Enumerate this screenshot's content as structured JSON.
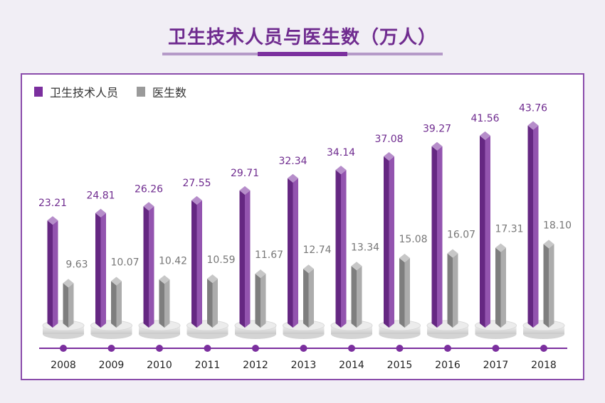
{
  "title": "卫生技术人员与医生数（万人）",
  "colors": {
    "series1": "#7b2f9e",
    "series2": "#9a9a9a",
    "label1": "#6f2b8f",
    "label2": "#777777",
    "axis": "#7b2f9e"
  },
  "chart_data": {
    "type": "bar",
    "title": "卫生技术人员与医生数（万人）",
    "categories": [
      "2008",
      "2009",
      "2010",
      "2011",
      "2012",
      "2013",
      "2014",
      "2015",
      "2016",
      "2017",
      "2018"
    ],
    "series": [
      {
        "name": "卫生技术人员",
        "values": [
          23.21,
          24.81,
          26.26,
          27.55,
          29.71,
          32.34,
          34.14,
          37.08,
          39.27,
          41.56,
          43.76
        ]
      },
      {
        "name": "医生数",
        "values": [
          9.63,
          10.07,
          10.42,
          10.59,
          11.67,
          12.74,
          13.34,
          15.08,
          16.07,
          17.31,
          18.1
        ]
      }
    ],
    "value_labels": [
      [
        "23.21",
        "24.81",
        "26.26",
        "27.55",
        "29.71",
        "32.34",
        "34.14",
        "37.08",
        "39.27",
        "41.56",
        "43.76"
      ],
      [
        "9.63",
        "10.07",
        "10.42",
        "10.59",
        "11.67",
        "12.74",
        "13.34",
        "15.08",
        "16.07",
        "17.31",
        "18.10"
      ]
    ],
    "xlabel": "",
    "ylabel": "",
    "legend_position": "top-left",
    "grid": false
  }
}
